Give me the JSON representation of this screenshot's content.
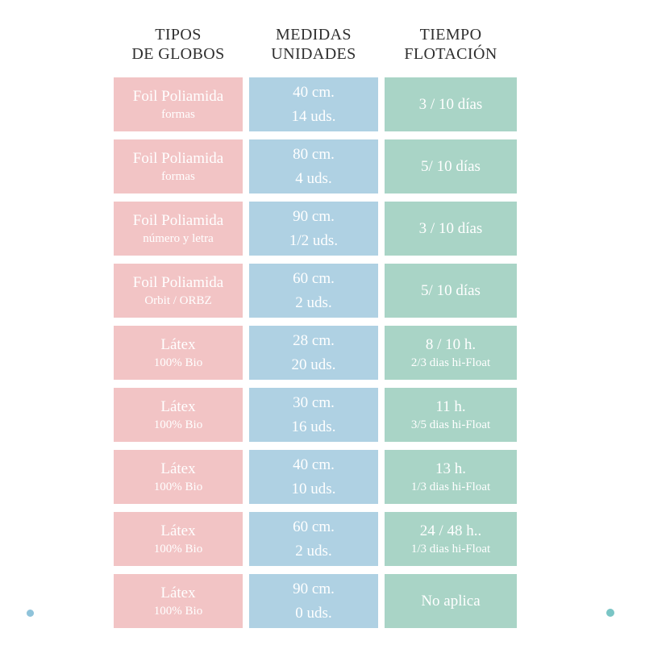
{
  "header": {
    "columns": [
      {
        "line1": "TIPOS",
        "line2": "DE GLOBOS"
      },
      {
        "line1": "MEDIDAS",
        "line2": "UNIDADES"
      },
      {
        "line1": "TIEMPO",
        "line2": "FLOTACIÓN"
      }
    ]
  },
  "table": {
    "rows": [
      {
        "tipo": "Foil Poliamida",
        "tipo_sub": "formas",
        "medida": "40 cm.",
        "unidades": "14 uds.",
        "tiempo": "3 / 10 días",
        "tiempo_sub": ""
      },
      {
        "tipo": "Foil Poliamida",
        "tipo_sub": "formas",
        "medida": "80 cm.",
        "unidades": "4 uds.",
        "tiempo": "5/ 10 días",
        "tiempo_sub": ""
      },
      {
        "tipo": "Foil Poliamida",
        "tipo_sub": "número y letra",
        "medida": "90 cm.",
        "unidades": "1/2 uds.",
        "tiempo": "3 / 10 días",
        "tiempo_sub": ""
      },
      {
        "tipo": "Foil Poliamida",
        "tipo_sub": "Orbit / ORBZ",
        "medida": "60 cm.",
        "unidades": "2 uds.",
        "tiempo": "5/ 10 días",
        "tiempo_sub": ""
      },
      {
        "tipo": "Látex",
        "tipo_sub": "100% Bio",
        "medida": "28 cm.",
        "unidades": "20 uds.",
        "tiempo": "8 / 10 h.",
        "tiempo_sub": "2/3 dias hi-Float"
      },
      {
        "tipo": "Látex",
        "tipo_sub": "100% Bio",
        "medida": "30 cm.",
        "unidades": "16 uds.",
        "tiempo": "11 h.",
        "tiempo_sub": "3/5 dias hi-Float"
      },
      {
        "tipo": "Látex",
        "tipo_sub": "100% Bio",
        "medida": "40 cm.",
        "unidades": "10 uds.",
        "tiempo": "13 h.",
        "tiempo_sub": "1/3 dias hi-Float"
      },
      {
        "tipo": "Látex",
        "tipo_sub": "100% Bio",
        "medida": "60 cm.",
        "unidades": "2 uds.",
        "tiempo": "24 / 48 h..",
        "tiempo_sub": "1/3 dias hi-Float"
      },
      {
        "tipo": "Látex",
        "tipo_sub": "100% Bio",
        "medida": "90 cm.",
        "unidades": "0 uds.",
        "tiempo": "No aplica",
        "tiempo_sub": ""
      }
    ]
  },
  "colors": {
    "pink": "#f2c4c5",
    "blue": "#afd1e3",
    "green": "#a9d4c6",
    "header_text": "#2e2e2e",
    "cell_text": "#ffffff",
    "dot_left": "#8fc3da",
    "dot_right": "#7ac5c5"
  },
  "chart_data": {
    "type": "table",
    "title": "",
    "columns": [
      "TIPOS DE GLOBOS",
      "MEDIDAS UNIDADES",
      "TIEMPO FLOTACIÓN"
    ],
    "rows": [
      [
        "Foil Poliamida — formas",
        "40 cm. — 14 uds.",
        "3 / 10 días"
      ],
      [
        "Foil Poliamida — formas",
        "80 cm. — 4 uds.",
        "5/ 10 días"
      ],
      [
        "Foil Poliamida — número y letra",
        "90 cm. — 1/2 uds.",
        "3 / 10 días"
      ],
      [
        "Foil Poliamida — Orbit / ORBZ",
        "60 cm. — 2 uds.",
        "5/ 10 días"
      ],
      [
        "Látex — 100% Bio",
        "28 cm. — 20 uds.",
        "8 / 10 h. — 2/3 dias hi-Float"
      ],
      [
        "Látex — 100% Bio",
        "30 cm. — 16 uds.",
        "11 h. — 3/5 dias hi-Float"
      ],
      [
        "Látex — 100% Bio",
        "40 cm. — 10 uds.",
        "13 h. — 1/3 dias hi-Float"
      ],
      [
        "Látex — 100% Bio",
        "60 cm. — 2 uds.",
        "24 / 48 h.. — 1/3 dias hi-Float"
      ],
      [
        "Látex — 100% Bio",
        "90 cm. — 0 uds.",
        "No aplica"
      ]
    ],
    "layout": {
      "grid": false,
      "legend": "none",
      "cell_colors_by_column": [
        "#f2c4c5",
        "#afd1e3",
        "#a9d4c6"
      ]
    }
  }
}
